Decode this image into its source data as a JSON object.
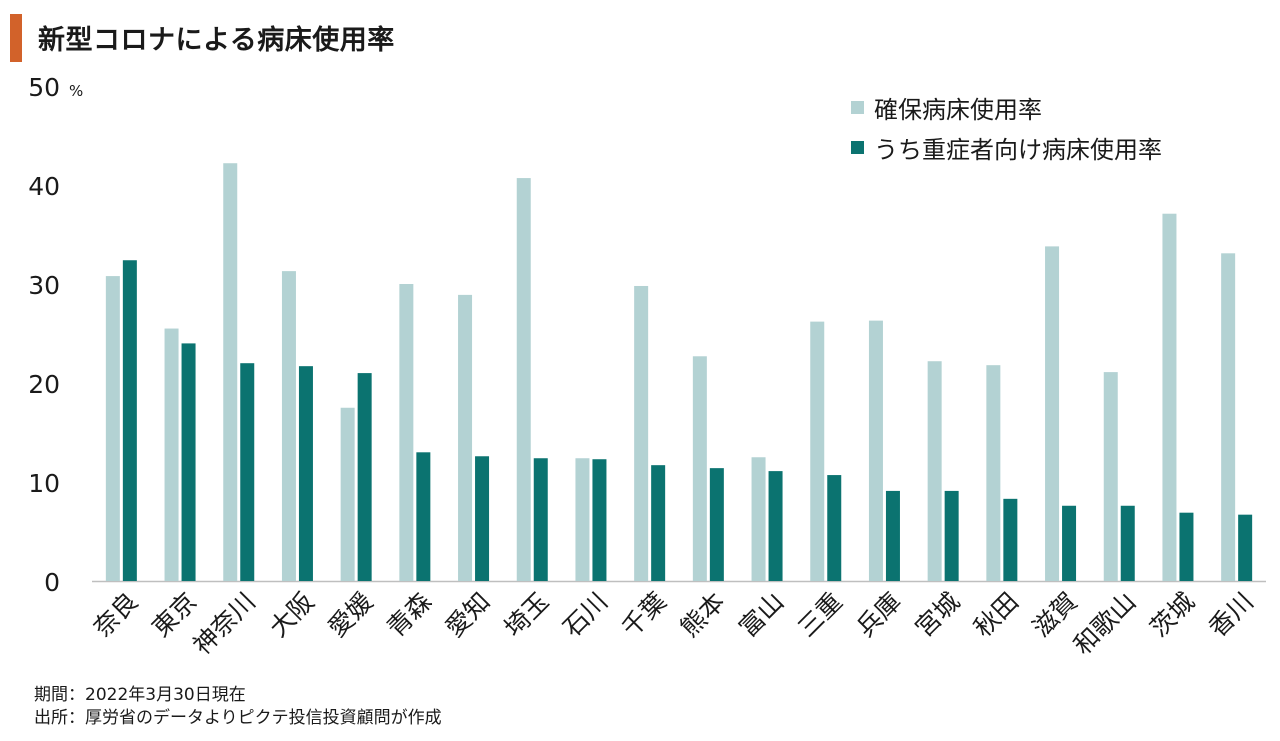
{
  "title": "新型コロナによる病床使用率",
  "chart_data": {
    "type": "bar",
    "categories": [
      "奈良",
      "東京",
      "神奈川",
      "大阪",
      "愛媛",
      "青森",
      "愛知",
      "埼玉",
      "石川",
      "千葉",
      "熊本",
      "富山",
      "三重",
      "兵庫",
      "宮城",
      "秋田",
      "滋賀",
      "和歌山",
      "茨城",
      "香川"
    ],
    "series": [
      {
        "name": "確保病床使用率",
        "color": "#b3d2d3",
        "values": [
          30.8,
          25.5,
          42.2,
          31.3,
          17.5,
          30.0,
          28.9,
          40.7,
          12.4,
          29.8,
          22.7,
          12.5,
          26.2,
          26.3,
          22.2,
          21.8,
          33.8,
          21.1,
          37.1,
          33.1
        ]
      },
      {
        "name": "うち重症者向け病床使用率",
        "color": "#0b7370",
        "values": [
          32.4,
          24.0,
          22.0,
          21.7,
          21.0,
          13.0,
          12.6,
          12.4,
          12.3,
          11.7,
          11.4,
          11.1,
          10.7,
          9.1,
          9.1,
          8.3,
          7.6,
          7.6,
          6.9,
          6.7
        ]
      }
    ],
    "ylim": [
      0,
      50
    ],
    "yticks": [
      "0",
      "10",
      "20",
      "30",
      "40",
      "50"
    ],
    "yunit": "%",
    "legend_position": "top-right",
    "grid": false
  },
  "notes": {
    "period": "期間：2022年3月30日現在",
    "source": "出所：厚労省のデータよりピクテ投信投資顧問が作成"
  }
}
